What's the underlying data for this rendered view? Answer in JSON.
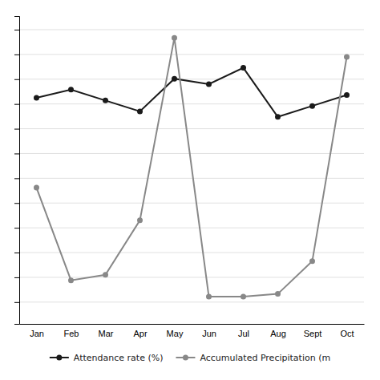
{
  "chart_data": {
    "type": "line",
    "categories": [
      "Jan",
      "Feb",
      "Mar",
      "Apr",
      "May",
      "Jun",
      "Jul",
      "Aug",
      "Sept",
      "Oct"
    ],
    "series": [
      {
        "name": "Attendance rate (%)",
        "color": "#1a1a1a",
        "marker": "circle",
        "values": [
          75,
          78,
          74,
          70,
          82,
          80,
          86,
          68,
          72,
          76
        ]
      },
      {
        "name": "Accumulated Precipitation (m",
        "color": "#888888",
        "marker": "circle",
        "values": [
          42,
          8,
          10,
          30,
          97,
          2,
          2,
          3,
          15,
          90
        ]
      }
    ],
    "ylim": [
      -8,
      105
    ],
    "yticks": [
      0,
      9.090909090909092,
      18.181818181818183,
      27.27272727272727,
      36.36363636363637,
      45.45454545454545,
      54.54545454545455,
      63.63636363636364,
      72.72727272727273,
      81.81818181818183,
      90.9090909090909,
      100
    ],
    "grid": true,
    "legend": "bottom",
    "tick_labels": "x"
  }
}
